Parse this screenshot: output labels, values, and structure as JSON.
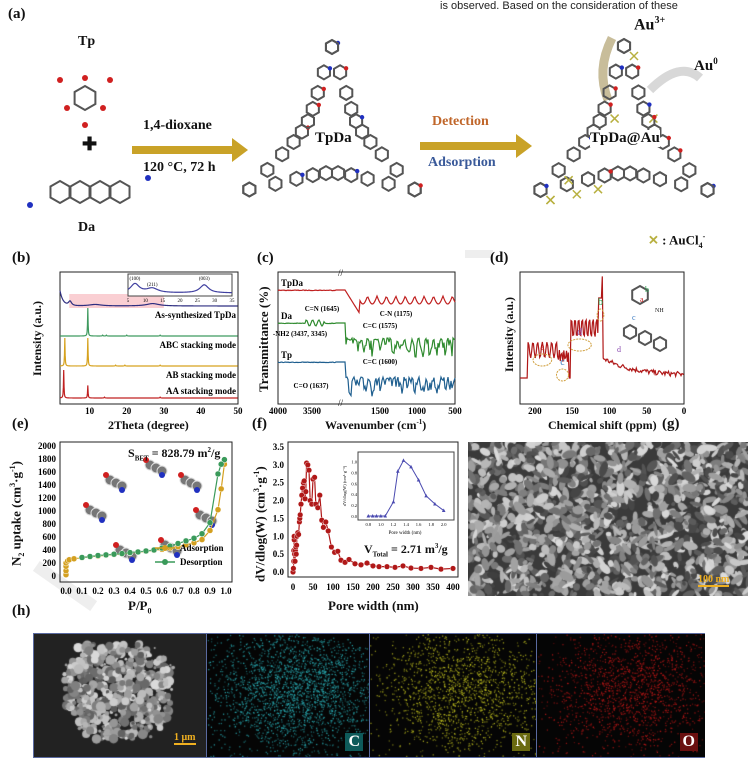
{
  "header_fragment": "is observed.   Based on the consideration of these",
  "panel_a": {
    "label": "(a)",
    "monomer1": "Tp",
    "plus": "✚",
    "monomer2": "Da",
    "condition1": "1,4-dioxane",
    "condition2": "120 °C, 72 h",
    "product": "TpDa",
    "detection": "Detection",
    "adsorption": "Adsorption",
    "product_au": "TpDa@Au",
    "au3": "Au",
    "au3_sup": "3+",
    "au0": "Au",
    "au0_sup": "0",
    "legend_symbol": "✕",
    "legend_text": " : AuCl",
    "legend_sub": "4",
    "legend_sup": "-",
    "colors": {
      "arrow": "#c9a227",
      "detection": "#c0662a",
      "adsorption": "#3a5a9a",
      "au3_arrow": "#c8bd9a",
      "au0_arrow": "#d8d8d8"
    }
  },
  "chart_data": [
    {
      "panel": "(b)",
      "type": "line",
      "xlabel": "2Theta (degree)",
      "ylabel": "Intensity (a.u.)",
      "xlim": [
        2,
        50
      ],
      "xticks": [
        10,
        20,
        30,
        40,
        50
      ],
      "series": [
        {
          "name": "As-synthesized TpDa",
          "color": "#2e2e80",
          "peaks": [
            [
              4.7,
              0.15,
              0.5
            ],
            [
              11.5,
              0.05,
              2
            ],
            [
              27,
              0.08,
              2
            ]
          ]
        },
        {
          "name": "ABC stacking mode",
          "color": "#3f9a5f",
          "peaks": [
            [
              9.5,
              1.0,
              0.08
            ],
            [
              13.5,
              0.03,
              0.1
            ],
            [
              14.5,
              0.03,
              0.1
            ],
            [
              20,
              0.03,
              0.1
            ],
            [
              29,
              0.03,
              0.1
            ]
          ]
        },
        {
          "name": "AB stacking mode",
          "color": "#d6a21e",
          "peaks": [
            [
              3.3,
              1.0,
              0.08
            ],
            [
              9.5,
              1.0,
              0.08
            ],
            [
              17,
              0.03,
              0.1
            ],
            [
              19.5,
              0.03,
              0.1
            ],
            [
              29,
              0.03,
              0.1
            ]
          ]
        },
        {
          "name": "AA stacking mode",
          "color": "#c02020",
          "peaks": [
            [
              3.0,
              1.0,
              0.08
            ],
            [
              9.5,
              0.45,
              0.08
            ],
            [
              14,
              0.03,
              0.1
            ],
            [
              29,
              0.03,
              0.1
            ]
          ]
        }
      ],
      "inset": {
        "xlim": [
          5,
          35
        ],
        "xticks": [
          5,
          10,
          15,
          20,
          25,
          30,
          35
        ],
        "peak_labels": [
          "(100)",
          "(211)",
          "(003)"
        ],
        "peak_positions": [
          7,
          12,
          27
        ]
      }
    },
    {
      "panel": "(c)",
      "type": "line",
      "xlabel": "Wavenumber (cm",
      "xlabel_sup": "-1",
      "xlabel_end": ")",
      "ylabel": "Transmittance (%)",
      "xticks": [
        4000,
        3500,
        1500,
        1000,
        500
      ],
      "axis_break": "//",
      "series": [
        {
          "name": "TpDa",
          "color": "#c02020"
        },
        {
          "name": "Da",
          "color": "#2e8a2e"
        },
        {
          "name": "Tp",
          "color": "#1f5f8f"
        }
      ],
      "annotations": [
        "C=N (1645)",
        "C-N (1175)",
        "C=C (1575)",
        "-NH",
        "2",
        " (3437, 3345)",
        "C=C (1600)",
        "C=O (1637)"
      ]
    },
    {
      "panel": "(d)",
      "type": "line",
      "xlabel": "Chemical shift (ppm)",
      "ylabel": "Intensity (a.u.)",
      "xlim": [
        220,
        0
      ],
      "xticks": [
        200,
        150,
        100,
        50,
        0
      ],
      "color": "#b01818",
      "annotations": [
        {
          "label": "a",
          "color": "#c02020"
        },
        {
          "label": "c",
          "color": "#3a7ac0"
        },
        {
          "label": "d",
          "color": "#8a4ab0"
        },
        {
          "label": "b",
          "color": "#2aa050"
        }
      ],
      "structure_labels": [
        "b",
        "a",
        "c",
        "d",
        "NH"
      ]
    },
    {
      "panel": "(e)",
      "type": "line",
      "xlabel": "P/P",
      "xlabel_sub": "0",
      "ylabel": "N",
      "ylabel_rest": " uptake (cm",
      "ylim": [
        0,
        2000
      ],
      "xlim": [
        0,
        1.0
      ],
      "yticks": [
        0,
        200,
        400,
        600,
        800,
        1000,
        1200,
        1400,
        1600,
        1800,
        2000
      ],
      "xticks": [
        "0.0",
        "0.1",
        "0.2",
        "0.3",
        "0.4",
        "0.5",
        "0.6",
        "0.7",
        "0.8",
        "0.9",
        "1.0"
      ],
      "annotation": {
        "s": "S",
        "sub": "BET",
        "rest": " = 828.79 m",
        "sup": "2",
        "end": "/g"
      },
      "series": [
        {
          "name": "Adsorption",
          "color": "#d4a020",
          "x": [
            0.0,
            0.0,
            0.0,
            0.0,
            0.01,
            0.02,
            0.05,
            0.1,
            0.15,
            0.2,
            0.25,
            0.3,
            0.35,
            0.4,
            0.45,
            0.5,
            0.55,
            0.6,
            0.65,
            0.7,
            0.75,
            0.8,
            0.85,
            0.9,
            0.95,
            0.97,
            0.99
          ],
          "y": [
            20,
            80,
            150,
            200,
            230,
            250,
            265,
            280,
            295,
            305,
            318,
            330,
            340,
            355,
            365,
            380,
            395,
            410,
            430,
            450,
            480,
            510,
            560,
            700,
            1020,
            1340,
            1720
          ]
        },
        {
          "name": "Desorption",
          "color": "#3a9a5a",
          "x": [
            0.99,
            0.97,
            0.95,
            0.9,
            0.85,
            0.8,
            0.75,
            0.7,
            0.65,
            0.6,
            0.55,
            0.5,
            0.45,
            0.4,
            0.35,
            0.3,
            0.25,
            0.2,
            0.15,
            0.1
          ],
          "y": [
            1790,
            1720,
            1570,
            820,
            650,
            580,
            540,
            500,
            460,
            430,
            400,
            385,
            370,
            360,
            345,
            335,
            325,
            315,
            300,
            285
          ]
        }
      ]
    },
    {
      "panel": "(f)",
      "type": "line",
      "xlabel": "Pore width (nm)",
      "ylabel": "dV/dlog(W) (cm",
      "xlim": [
        0,
        400
      ],
      "ylim": [
        0,
        3.5
      ],
      "xticks": [
        0,
        50,
        100,
        150,
        200,
        250,
        300,
        350,
        400
      ],
      "yticks": [
        "0.0",
        "0.5",
        "1.0",
        "1.5",
        "2.0",
        "2.5",
        "3.0",
        "3.5"
      ],
      "annotation": {
        "v": "V",
        "sub": "Total",
        "rest": " = 2.71 m",
        "sup": "3",
        "end": "/g"
      },
      "color": "#b01818",
      "points": [
        [
          0,
          0
        ],
        [
          1,
          0.1
        ],
        [
          2,
          0.3
        ],
        [
          2,
          0.6
        ],
        [
          3,
          0.9
        ],
        [
          3,
          1.0
        ],
        [
          4,
          0.5
        ],
        [
          5,
          0.3
        ],
        [
          6,
          0.6
        ],
        [
          7,
          0.7
        ],
        [
          8,
          0.5
        ],
        [
          9,
          0.75
        ],
        [
          10,
          1.0
        ],
        [
          12,
          1.1
        ],
        [
          14,
          1.05
        ],
        [
          16,
          1.4
        ],
        [
          17,
          1.5
        ],
        [
          18,
          1.6
        ],
        [
          20,
          1.9
        ],
        [
          22,
          2.15
        ],
        [
          24,
          2.35
        ],
        [
          26,
          2.5
        ],
        [
          28,
          2.55
        ],
        [
          30,
          2.05
        ],
        [
          32,
          2.25
        ],
        [
          34,
          3.05
        ],
        [
          37,
          3.0
        ],
        [
          40,
          2.85
        ],
        [
          43,
          2.0
        ],
        [
          47,
          1.9
        ],
        [
          50,
          2.6
        ],
        [
          54,
          2.65
        ],
        [
          57,
          1.9
        ],
        [
          62,
          1.8
        ],
        [
          67,
          2.15
        ],
        [
          72,
          1.45
        ],
        [
          76,
          1.25
        ],
        [
          82,
          1.4
        ],
        [
          88,
          1.15
        ],
        [
          96,
          0.7
        ],
        [
          104,
          0.55
        ],
        [
          112,
          0.58
        ],
        [
          120,
          0.33
        ],
        [
          130,
          0.27
        ],
        [
          140,
          0.35
        ],
        [
          155,
          0.23
        ],
        [
          170,
          0.2
        ],
        [
          185,
          0.25
        ],
        [
          200,
          0.17
        ],
        [
          215,
          0.15
        ],
        [
          235,
          0.15
        ],
        [
          255,
          0.13
        ],
        [
          275,
          0.17
        ],
        [
          295,
          0.11
        ],
        [
          320,
          0.1
        ],
        [
          345,
          0.13
        ],
        [
          370,
          0.08
        ],
        [
          400,
          0.1
        ]
      ],
      "inset": {
        "xlabel": "Pore width (nm)",
        "ylabel": "dV/dlog(W) (cm³·g⁻¹)",
        "xlim": [
          0.7,
          2.1
        ],
        "ylim": [
          0,
          1.1
        ],
        "xticks": [
          "0.8",
          "1.0",
          "1.2",
          "1.4",
          "1.6",
          "1.8",
          "2.0"
        ],
        "yticks": [
          "0.0",
          "0.2",
          "0.4",
          "0.6",
          "0.8",
          "1.0"
        ],
        "color": "#4a4ab0",
        "x": [
          0.8,
          0.87,
          0.93,
          1.0,
          1.07,
          1.2,
          1.27,
          1.36,
          1.48,
          1.6,
          1.72,
          1.86,
          2.0
        ],
        "y": [
          0,
          0,
          0,
          0,
          0,
          0.26,
          0.82,
          1.02,
          0.9,
          0.66,
          0.37,
          0.22,
          0.1
        ]
      }
    }
  ],
  "panel_g": {
    "label": "(g)",
    "scale_bar": "100 nm"
  },
  "panel_h": {
    "label": "(h)",
    "scale_bar": "1 μm",
    "maps": [
      {
        "element": "C",
        "color": "#2ab0b8",
        "badge": "#0e5a5a"
      },
      {
        "element": "N",
        "color": "#c8c820",
        "badge": "#6a6a10"
      },
      {
        "element": "O",
        "color": "#c01818",
        "badge": "#6a1010"
      }
    ]
  },
  "panel_labels": {
    "b": "(b)",
    "c": "(c)",
    "d": "(d)",
    "e": "(e)",
    "f": "(f)"
  }
}
